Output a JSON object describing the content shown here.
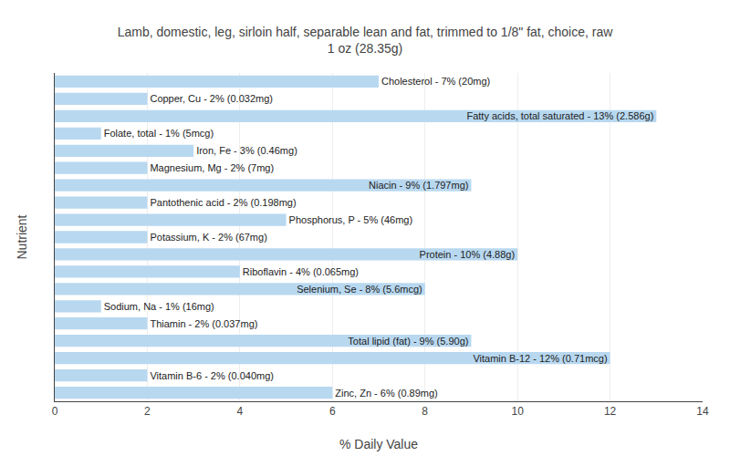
{
  "chart_data": {
    "type": "bar",
    "orientation": "horizontal",
    "title": "Lamb, domestic, leg, sirloin half, separable lean and fat, trimmed to 1/8\" fat, choice, raw\n1 oz (28.35g)",
    "xlabel": "% Daily Value",
    "ylabel": "Nutrient",
    "categories": [
      "Cholesterol - 7% (20mg)",
      "Copper, Cu - 2% (0.032mg)",
      "Fatty acids, total saturated - 13% (2.586g)",
      "Folate, total - 1% (5mcg)",
      "Iron, Fe - 3% (0.46mg)",
      "Magnesium, Mg - 2% (7mg)",
      "Niacin - 9% (1.797mg)",
      "Pantothenic acid - 2% (0.198mg)",
      "Phosphorus, P - 5% (46mg)",
      "Potassium, K - 2% (67mg)",
      "Protein - 10% (4.88g)",
      "Riboflavin - 4% (0.065mg)",
      "Selenium, Se - 8% (5.6mcg)",
      "Sodium, Na - 1% (16mg)",
      "Thiamin - 2% (0.037mg)",
      "Total lipid (fat) - 9% (5.90g)",
      "Vitamin B-12 - 12% (0.71mcg)",
      "Vitamin B-6 - 2% (0.040mg)",
      "Zinc, Zn - 6% (0.89mg)"
    ],
    "values": [
      7,
      2,
      13,
      1,
      3,
      2,
      9,
      2,
      5,
      2,
      10,
      4,
      8,
      1,
      2,
      9,
      12,
      2,
      6
    ],
    "color": "#b8d8f0",
    "xlim": [
      0,
      14
    ],
    "xticks": [
      0,
      2,
      4,
      6,
      8,
      10,
      12,
      14
    ],
    "grid": true,
    "tick_labels": "x"
  }
}
